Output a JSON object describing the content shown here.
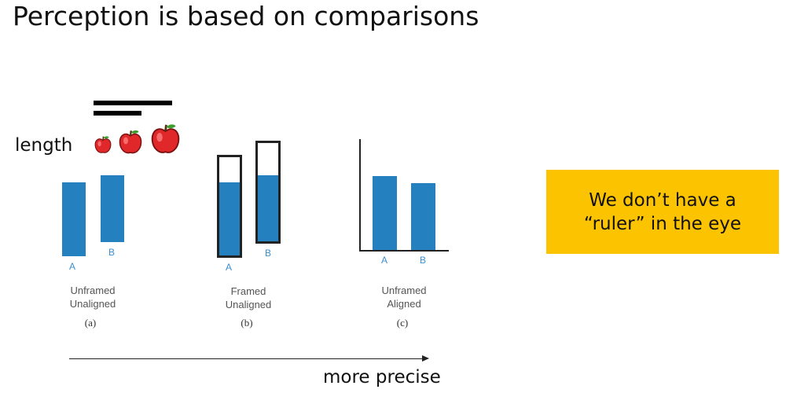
{
  "slide": {
    "title": "Perception is based on comparisons"
  },
  "length_demo": {
    "label": "length",
    "apple_icon": "red-apple-icon",
    "apple_color": "#e0282b"
  },
  "panels": [
    {
      "bar_a_label": "A",
      "bar_b_label": "B",
      "caption_line1": "Unframed",
      "caption_line2": "Unaligned",
      "tag": "(a)"
    },
    {
      "bar_a_label": "A",
      "bar_b_label": "B",
      "caption_line1": "Framed",
      "caption_line2": "Unaligned",
      "tag": "(b)"
    },
    {
      "bar_a_label": "A",
      "bar_b_label": "B",
      "caption_line1": "Unframed",
      "caption_line2": "Aligned",
      "tag": "(c)"
    }
  ],
  "callout": {
    "text": "We don’t have a\n“ruler” in the eye",
    "background": "#fcc300"
  },
  "precision_arrow": {
    "label": "more precise"
  },
  "colors": {
    "bar_fill": "#2580c0",
    "bar_letter": "#3a8fd0"
  }
}
